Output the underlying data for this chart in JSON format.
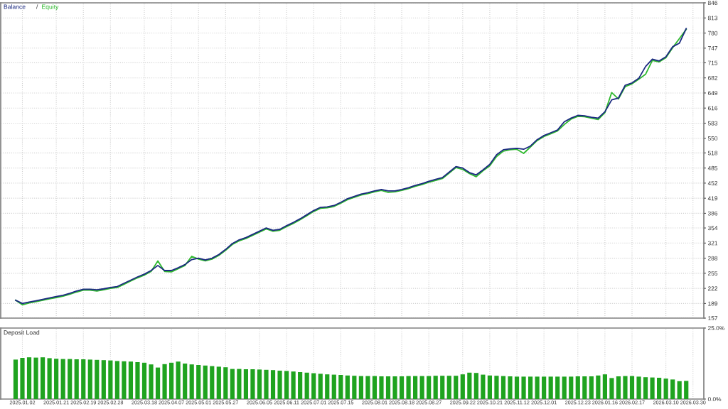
{
  "chart_data": [
    {
      "type": "line",
      "legend": "top left",
      "grid": true,
      "tick_labels": "y",
      "annotations": [
        "/"
      ],
      "categories": [
        null,
        "2025.01.02",
        null,
        null,
        null,
        null,
        "2025.01.21",
        null,
        null,
        null,
        "2025.02.19",
        null,
        null,
        null,
        "2025.02.28",
        null,
        null,
        null,
        null,
        "2025.03.18",
        null,
        null,
        null,
        "2025.04.07",
        null,
        null,
        null,
        "2025.05.01",
        null,
        null,
        null,
        "2025.05.27",
        null,
        null,
        null,
        null,
        "2025.06.05",
        null,
        null,
        null,
        "2025.06.11",
        null,
        null,
        null,
        "2025.07.01",
        null,
        null,
        null,
        "2025.07.15",
        null,
        null,
        null,
        null,
        "2025.08.01",
        null,
        null,
        null,
        "2025.08.18",
        null,
        null,
        null,
        "2025.08.27",
        null,
        null,
        null,
        null,
        "2025.09.22",
        null,
        null,
        null,
        "2025.10.21",
        null,
        null,
        null,
        "2025.11.12",
        null,
        null,
        null,
        "2025.12.01",
        null,
        null,
        null,
        null,
        "2025.12.23",
        null,
        null,
        null,
        "2026.01.16",
        null,
        null,
        null,
        "2026.02.17",
        null,
        null,
        null,
        null,
        "2026.03.10",
        null,
        null,
        null,
        "2026.03.30"
      ],
      "ylim": [
        157,
        846
      ],
      "yticks": [
        157,
        189,
        222,
        255,
        288,
        321,
        354,
        386,
        419,
        452,
        485,
        518,
        550,
        583,
        616,
        649,
        682,
        715,
        747,
        780,
        813,
        846
      ],
      "series": [
        {
          "name": "Balance",
          "color": "#1b2a80",
          "values": [
            196,
            189,
            192,
            195,
            198,
            201,
            204,
            207,
            211,
            216,
            220,
            220,
            219,
            221,
            224,
            226,
            233,
            240,
            247,
            253,
            261,
            272,
            261,
            261,
            267,
            274,
            285,
            288,
            284,
            288,
            296,
            307,
            320,
            328,
            333,
            340,
            347,
            354,
            349,
            351,
            359,
            366,
            374,
            383,
            392,
            399,
            400,
            403,
            410,
            418,
            423,
            428,
            431,
            435,
            438,
            435,
            435,
            438,
            442,
            447,
            451,
            456,
            460,
            464,
            476,
            488,
            485,
            475,
            470,
            481,
            493,
            514,
            525,
            527,
            528,
            526,
            533,
            547,
            556,
            562,
            568,
            586,
            594,
            600,
            599,
            596,
            594,
            608,
            634,
            638,
            666,
            671,
            681,
            707,
            723,
            719,
            728,
            750,
            758,
            790,
            null
          ]
        },
        {
          "name": "Equity",
          "color": "#2db82d",
          "values": [
            196,
            186,
            190,
            193,
            196,
            199,
            202,
            205,
            209,
            214,
            218,
            218,
            216,
            219,
            222,
            224,
            231,
            238,
            245,
            251,
            259,
            282,
            259,
            258,
            265,
            272,
            292,
            286,
            282,
            286,
            294,
            305,
            318,
            326,
            331,
            338,
            345,
            352,
            347,
            349,
            357,
            364,
            372,
            381,
            390,
            397,
            398,
            401,
            408,
            416,
            421,
            426,
            429,
            433,
            436,
            432,
            433,
            436,
            440,
            445,
            449,
            454,
            458,
            462,
            474,
            486,
            482,
            473,
            466,
            479,
            490,
            510,
            522,
            525,
            526,
            517,
            531,
            545,
            554,
            560,
            566,
            580,
            592,
            598,
            597,
            594,
            591,
            606,
            650,
            636,
            663,
            669,
            679,
            690,
            720,
            717,
            726,
            748,
            768,
            788,
            null
          ]
        }
      ]
    },
    {
      "type": "bar",
      "title": "Deposit Load",
      "grid": "x",
      "color": "#1fa31f",
      "categories": [
        null,
        "2025.01.02",
        null,
        null,
        null,
        null,
        "2025.01.21",
        null,
        null,
        null,
        "2025.02.19",
        null,
        null,
        null,
        "2025.02.28",
        null,
        null,
        null,
        null,
        "2025.03.18",
        null,
        null,
        null,
        "2025.04.07",
        null,
        null,
        null,
        "2025.05.01",
        null,
        null,
        null,
        "2025.05.27",
        null,
        null,
        null,
        null,
        "2025.06.05",
        null,
        null,
        null,
        "2025.06.11",
        null,
        null,
        null,
        "2025.07.01",
        null,
        null,
        null,
        "2025.07.15",
        null,
        null,
        null,
        null,
        "2025.08.01",
        null,
        null,
        null,
        "2025.08.18",
        null,
        null,
        null,
        "2025.08.27",
        null,
        null,
        null,
        null,
        "2025.09.22",
        null,
        null,
        null,
        "2025.10.21",
        null,
        null,
        null,
        "2025.11.12",
        null,
        null,
        null,
        "2025.12.01",
        null,
        null,
        null,
        null,
        "2025.12.23",
        null,
        null,
        null,
        "2026.01.16",
        null,
        null,
        null,
        "2026.02.17",
        null,
        null,
        null,
        null,
        "2026.03.10",
        null,
        null,
        null,
        "2026.03.30"
      ],
      "ylim": [
        0,
        25
      ],
      "yticks": [
        {
          "value": 0,
          "label": "0.0%"
        },
        {
          "value": 25,
          "label": "25.0%"
        }
      ],
      "values": [
        13.9,
        14.5,
        14.7,
        14.6,
        14.7,
        14.4,
        14.2,
        14.1,
        14.1,
        14.0,
        14.0,
        13.9,
        13.8,
        13.7,
        13.6,
        13.4,
        13.3,
        13.2,
        13.0,
        12.8,
        12.2,
        11.1,
        12.3,
        12.8,
        13.2,
        12.5,
        12.2,
        12.0,
        11.8,
        11.6,
        11.4,
        11.2,
        10.6,
        10.6,
        10.5,
        10.5,
        10.4,
        10.3,
        10.2,
        10.0,
        9.9,
        9.7,
        9.5,
        9.3,
        9.1,
        8.9,
        8.7,
        8.6,
        8.5,
        8.3,
        8.2,
        8.1,
        8.1,
        8.1,
        8.0,
        8.0,
        8.0,
        8.0,
        8.1,
        8.1,
        8.1,
        8.1,
        8.2,
        8.2,
        8.2,
        8.2,
        8.7,
        9.3,
        9.2,
        8.6,
        8.3,
        8.2,
        8.1,
        8.0,
        7.9,
        7.9,
        7.9,
        7.9,
        7.9,
        7.9,
        7.9,
        7.9,
        7.9,
        8.0,
        8.0,
        8.0,
        8.3,
        8.7,
        7.4,
        8.0,
        8.1,
        8.1,
        7.9,
        7.7,
        7.6,
        7.5,
        7.2,
        6.9,
        6.3,
        6.4,
        null
      ]
    }
  ]
}
